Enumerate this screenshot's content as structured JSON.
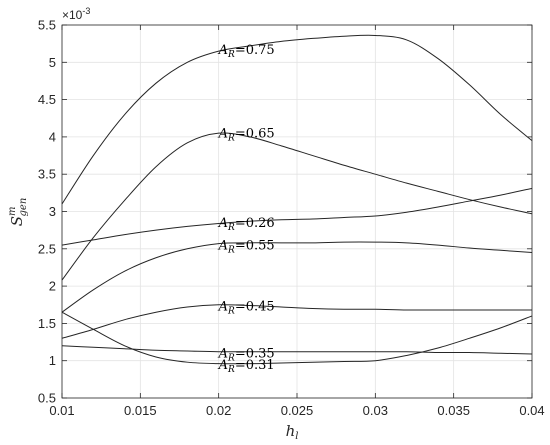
{
  "chart_data": {
    "type": "line",
    "xlabel": "h",
    "xlabel_sub": "l",
    "ylabel_main": "S",
    "ylabel_sup": "m",
    "ylabel_sub": "gen",
    "y_exponent_label": "×10",
    "y_exponent_power": "-3",
    "xlim": [
      0.01,
      0.04
    ],
    "ylim": [
      0.5,
      5.5
    ],
    "x_ticks": [
      0.01,
      0.015,
      0.02,
      0.025,
      0.03,
      0.035,
      0.04
    ],
    "x_tick_labels": [
      "0.01",
      "0.015",
      "0.02",
      "0.025",
      "0.03",
      "0.035",
      "0.04"
    ],
    "y_ticks": [
      0.5,
      1,
      1.5,
      2,
      2.5,
      3,
      3.5,
      4,
      4.5,
      5,
      5.5
    ],
    "y_tick_labels": [
      "0.5",
      "1",
      "1.5",
      "2",
      "2.5",
      "3",
      "3.5",
      "4",
      "4.5",
      "5",
      "5.5"
    ],
    "grid": true,
    "line_color": "#262626",
    "series": [
      {
        "name": "A_R=0.75",
        "label_prefix": "A",
        "label_sub": "R",
        "label_value": "=0.75",
        "label_x": 0.02,
        "label_y": 5.17,
        "x": [
          0.01,
          0.012,
          0.014,
          0.016,
          0.018,
          0.02,
          0.022,
          0.024,
          0.026,
          0.028,
          0.03,
          0.032,
          0.034,
          0.036,
          0.038,
          0.04
        ],
        "values": [
          3.1,
          3.75,
          4.3,
          4.72,
          5.0,
          5.15,
          5.22,
          5.28,
          5.32,
          5.35,
          5.36,
          5.3,
          5.05,
          4.7,
          4.3,
          3.95
        ]
      },
      {
        "name": "A_R=0.65",
        "label_prefix": "A",
        "label_sub": "R",
        "label_value": "=0.65",
        "label_x": 0.02,
        "label_y": 4.05,
        "x": [
          0.01,
          0.012,
          0.014,
          0.016,
          0.018,
          0.02,
          0.022,
          0.024,
          0.026,
          0.028,
          0.03,
          0.032,
          0.034,
          0.036,
          0.038,
          0.04
        ],
        "values": [
          2.08,
          2.65,
          3.15,
          3.6,
          3.92,
          4.05,
          4.0,
          3.88,
          3.75,
          3.62,
          3.5,
          3.38,
          3.27,
          3.16,
          3.06,
          2.97
        ]
      },
      {
        "name": "A_R=0.26",
        "label_prefix": "A",
        "label_sub": "R",
        "label_value": "=0.26",
        "label_x": 0.02,
        "label_y": 2.85,
        "x": [
          0.01,
          0.012,
          0.014,
          0.016,
          0.018,
          0.02,
          0.022,
          0.024,
          0.026,
          0.028,
          0.03,
          0.032,
          0.034,
          0.036,
          0.038,
          0.04
        ],
        "values": [
          2.55,
          2.62,
          2.69,
          2.75,
          2.8,
          2.84,
          2.87,
          2.89,
          2.9,
          2.92,
          2.94,
          2.99,
          3.06,
          3.14,
          3.22,
          3.31
        ]
      },
      {
        "name": "A_R=0.55",
        "label_prefix": "A",
        "label_sub": "R",
        "label_value": "=0.55",
        "label_x": 0.02,
        "label_y": 2.55,
        "x": [
          0.01,
          0.012,
          0.014,
          0.016,
          0.018,
          0.02,
          0.022,
          0.024,
          0.026,
          0.028,
          0.03,
          0.032,
          0.034,
          0.036,
          0.038,
          0.04
        ],
        "values": [
          1.65,
          1.95,
          2.2,
          2.38,
          2.5,
          2.57,
          2.58,
          2.58,
          2.58,
          2.59,
          2.59,
          2.58,
          2.55,
          2.51,
          2.48,
          2.45
        ]
      },
      {
        "name": "A_R=0.45",
        "label_prefix": "A",
        "label_sub": "R",
        "label_value": "=0.45",
        "label_x": 0.02,
        "label_y": 1.73,
        "x": [
          0.01,
          0.012,
          0.014,
          0.016,
          0.018,
          0.02,
          0.022,
          0.024,
          0.026,
          0.028,
          0.03,
          0.032,
          0.034,
          0.036,
          0.038,
          0.04
        ],
        "values": [
          1.3,
          1.42,
          1.55,
          1.65,
          1.72,
          1.75,
          1.74,
          1.72,
          1.7,
          1.69,
          1.69,
          1.68,
          1.68,
          1.68,
          1.68,
          1.68
        ]
      },
      {
        "name": "A_R=0.35",
        "label_prefix": "A",
        "label_sub": "R",
        "label_value": "=0.35",
        "label_x": 0.02,
        "label_y": 1.1,
        "x": [
          0.01,
          0.012,
          0.014,
          0.016,
          0.018,
          0.02,
          0.022,
          0.024,
          0.026,
          0.028,
          0.03,
          0.032,
          0.034,
          0.036,
          0.038,
          0.04
        ],
        "values": [
          1.2,
          1.18,
          1.16,
          1.14,
          1.13,
          1.12,
          1.12,
          1.12,
          1.12,
          1.12,
          1.12,
          1.12,
          1.11,
          1.11,
          1.1,
          1.09
        ]
      },
      {
        "name": "A_R=0.31",
        "label_prefix": "A",
        "label_sub": "R",
        "label_value": "=0.31",
        "label_x": 0.02,
        "label_y": 0.95,
        "x": [
          0.01,
          0.012,
          0.014,
          0.016,
          0.018,
          0.02,
          0.022,
          0.024,
          0.026,
          0.028,
          0.03,
          0.032,
          0.034,
          0.036,
          0.038,
          0.04
        ],
        "values": [
          1.65,
          1.42,
          1.2,
          1.05,
          0.98,
          0.96,
          0.96,
          0.97,
          0.98,
          0.99,
          1.0,
          1.07,
          1.17,
          1.3,
          1.44,
          1.6
        ]
      }
    ]
  }
}
